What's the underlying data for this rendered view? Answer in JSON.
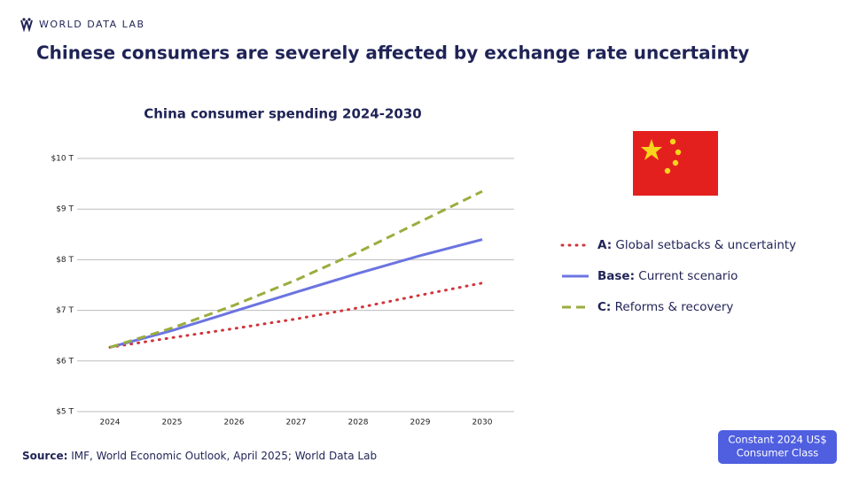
{
  "brand": "WORLD DATA LAB",
  "headline": "Chinese consumers are severely affected by exchange rate uncertainty",
  "source": {
    "label": "Source:",
    "text": "IMF, World Economic Outlook, April 2025; World Data Lab"
  },
  "badge": {
    "line1": "Constant 2024 US$",
    "line2": "Consumer Class"
  },
  "chart_data": {
    "type": "line",
    "title": "China consumer spending 2024-2030",
    "categories": [
      "2024",
      "2025",
      "2026",
      "2027",
      "2028",
      "2029",
      "2030"
    ],
    "ylim": [
      5,
      10
    ],
    "yticks": [
      {
        "value": 5,
        "label": "$5 T"
      },
      {
        "value": 6,
        "label": "$6 T"
      },
      {
        "value": 7,
        "label": "$7 T"
      },
      {
        "value": 8,
        "label": "$8 T"
      },
      {
        "value": 9,
        "label": "$9 T"
      },
      {
        "value": 10,
        "label": "$10 T"
      }
    ],
    "grid": true,
    "series": [
      {
        "name": "A:",
        "label": "Global setbacks & uncertainty",
        "color": "#d0343c",
        "style": "dotted",
        "values": [
          6.27,
          6.46,
          6.64,
          6.83,
          7.05,
          7.3,
          7.54
        ]
      },
      {
        "name": "Base:",
        "label": "Current scenario",
        "color": "#6b74e0",
        "style": "solid",
        "values": [
          6.27,
          6.6,
          6.98,
          7.36,
          7.73,
          8.08,
          8.4
        ]
      },
      {
        "name": "C:",
        "label": "Reforms & recovery",
        "color": "#9aad3e",
        "style": "dashed",
        "values": [
          6.27,
          6.65,
          7.1,
          7.6,
          8.15,
          8.75,
          9.35
        ]
      }
    ]
  }
}
